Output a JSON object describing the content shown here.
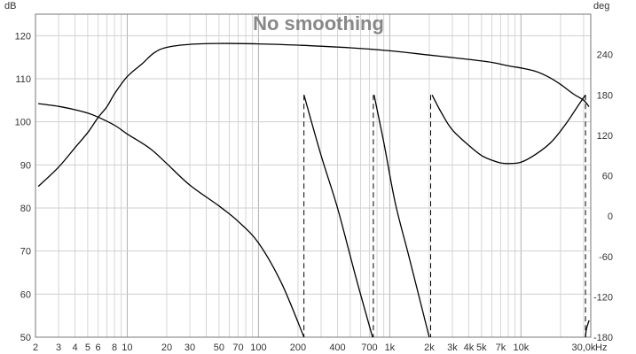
{
  "chart_data": {
    "type": "line",
    "title": "No smoothing",
    "x_scale": "log",
    "x_unit": "Hz",
    "xlim": [
      2,
      34000
    ],
    "x_ticks": [
      {
        "v": 2,
        "label": "2"
      },
      {
        "v": 3,
        "label": "3"
      },
      {
        "v": 4,
        "label": "4"
      },
      {
        "v": 5,
        "label": "5"
      },
      {
        "v": 6,
        "label": "6"
      },
      {
        "v": 8,
        "label": "8"
      },
      {
        "v": 10,
        "label": "10"
      },
      {
        "v": 20,
        "label": "20"
      },
      {
        "v": 30,
        "label": "30"
      },
      {
        "v": 50,
        "label": "50"
      },
      {
        "v": 70,
        "label": "70"
      },
      {
        "v": 100,
        "label": "100"
      },
      {
        "v": 200,
        "label": "200"
      },
      {
        "v": 400,
        "label": "400"
      },
      {
        "v": 700,
        "label": "700"
      },
      {
        "v": 1000,
        "label": "1k"
      },
      {
        "v": 2000,
        "label": "2k"
      },
      {
        "v": 3000,
        "label": "3k"
      },
      {
        "v": 4000,
        "label": "4k"
      },
      {
        "v": 5000,
        "label": "5k"
      },
      {
        "v": 7000,
        "label": "7k"
      },
      {
        "v": 10000,
        "label": "10k"
      },
      {
        "v": 30000,
        "label": "30,0k"
      }
    ],
    "y_left": {
      "unit": "dB",
      "ylim": [
        50,
        125
      ],
      "ticks": [
        50,
        60,
        70,
        80,
        90,
        100,
        110,
        120
      ]
    },
    "y_right": {
      "unit": "deg",
      "ylim": [
        -180,
        300
      ],
      "ticks": [
        -180,
        -120,
        -60,
        0,
        60,
        120,
        180,
        240
      ]
    },
    "grid": true,
    "series": [
      {
        "axis": "left",
        "color": "#000000",
        "points": [
          [
            2.1,
            85
          ],
          [
            3,
            89.5
          ],
          [
            4,
            94
          ],
          [
            5,
            97.5
          ],
          [
            6,
            101
          ],
          [
            7,
            103.5
          ],
          [
            8,
            106.5
          ],
          [
            10,
            110.5
          ],
          [
            13,
            113.5
          ],
          [
            16,
            116
          ],
          [
            20,
            117.3
          ],
          [
            30,
            118
          ],
          [
            50,
            118.2
          ],
          [
            100,
            118.1
          ],
          [
            200,
            117.8
          ],
          [
            500,
            117.2
          ],
          [
            1000,
            116.5
          ],
          [
            2000,
            115.5
          ],
          [
            4000,
            114.5
          ],
          [
            6000,
            113.8
          ],
          [
            8000,
            113
          ],
          [
            10000,
            112.5
          ],
          [
            13000,
            111.7
          ],
          [
            16000,
            110.5
          ],
          [
            20000,
            108.7
          ],
          [
            25000,
            106.5
          ],
          [
            30000,
            105
          ],
          [
            33000,
            103.5
          ]
        ]
      },
      {
        "axis": "right",
        "color": "#000000",
        "points": [
          [
            2.1,
            167
          ],
          [
            3,
            163
          ],
          [
            4,
            158
          ],
          [
            5,
            153
          ],
          [
            6,
            147
          ],
          [
            8,
            135
          ],
          [
            10,
            122
          ],
          [
            15,
            100
          ],
          [
            20,
            78
          ],
          [
            30,
            46
          ],
          [
            50,
            15
          ],
          [
            70,
            -8
          ],
          [
            100,
            -40
          ],
          [
            150,
            -100
          ],
          [
            222,
            -180
          ]
        ],
        "segments": [
          [
            [
              222,
              180
            ],
            [
              300,
              90
            ],
            [
              400,
              12
            ],
            [
              550,
              -90
            ],
            [
              740,
              -180
            ]
          ],
          [
            [
              760,
              180
            ],
            [
              900,
              110
            ],
            [
              1100,
              20
            ],
            [
              1400,
              -60
            ],
            [
              2000,
              -180
            ]
          ],
          [
            [
              2100,
              180
            ],
            [
              2500,
              152
            ],
            [
              3000,
              128
            ],
            [
              4000,
              105
            ],
            [
              5000,
              90
            ],
            [
              6000,
              83
            ],
            [
              7000,
              79
            ],
            [
              8000,
              78
            ],
            [
              10000,
              80
            ],
            [
              13000,
              92
            ],
            [
              17000,
              110
            ],
            [
              22000,
              137
            ],
            [
              27000,
              163
            ],
            [
              31000,
              180
            ]
          ],
          [
            [
              31000,
              -180
            ],
            [
              31500,
              -168
            ],
            [
              33000,
              -155
            ]
          ]
        ],
        "wrap_markers_hz": [
          222,
          750,
          2050,
          31000
        ]
      }
    ]
  }
}
